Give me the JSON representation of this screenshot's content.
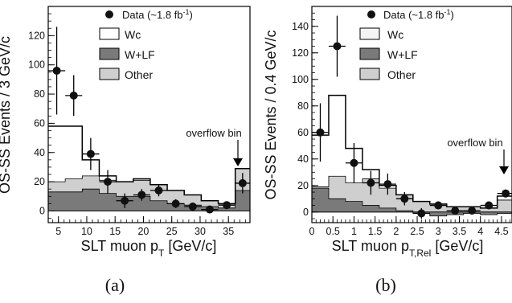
{
  "chart_data": [
    {
      "panel": "(a)",
      "type": "histogram",
      "xlabel": "SLT muon p",
      "xlabel_sub": "T",
      "xlabel_unit": " [GeV/c]",
      "ylabel": "OS-SS Events / 3 GeV/c",
      "xlim": [
        3.2,
        38.8
      ],
      "ylim": [
        -8,
        140
      ],
      "xticks": [
        5,
        10,
        15,
        20,
        25,
        30,
        35
      ],
      "yticks": [
        0,
        20,
        40,
        60,
        80,
        100,
        120
      ],
      "bin_edges": [
        3.2,
        6.2,
        9.2,
        12.2,
        15.2,
        18.2,
        21.2,
        24.2,
        27.2,
        30.2,
        33.2,
        36.2,
        38.8
      ],
      "stack_other": [
        20,
        22,
        24,
        21,
        20,
        21,
        18,
        14,
        11,
        7,
        5,
        29
      ],
      "stack_wlf": [
        13,
        13,
        15,
        12,
        10,
        10,
        7,
        5,
        4,
        3,
        2,
        14
      ],
      "stack_wc": [
        58,
        58,
        35,
        24,
        20,
        22,
        18,
        14,
        11,
        7,
        5,
        29
      ],
      "data_x": [
        4.7,
        7.7,
        10.7,
        13.7,
        16.7,
        19.7,
        22.7,
        25.7,
        28.7,
        31.7,
        34.7,
        37.5
      ],
      "data_y": [
        96,
        79,
        39,
        20,
        7,
        11,
        14,
        5,
        3,
        1,
        4,
        19
      ],
      "data_err": [
        30,
        14,
        11,
        8,
        5,
        4,
        4,
        3,
        2,
        1,
        2,
        7
      ],
      "legend": {
        "data": "Data (~1.8 fb",
        "data_sup": "-1",
        "data_close": ")",
        "wc": "Wc",
        "wlf": "W+LF",
        "other": "Other"
      },
      "annotation": "overflow bin",
      "caption": "(a)"
    },
    {
      "panel": "(b)",
      "type": "histogram",
      "xlabel": "SLT muon p",
      "xlabel_sub": "T,Rel",
      "xlabel_unit": " [GeV/c]",
      "ylabel": "OS-SS Events / 0.4 GeV/c",
      "xlim": [
        0,
        4.75
      ],
      "ylim": [
        -8,
        155
      ],
      "xticks": [
        0,
        0.5,
        1,
        1.5,
        2,
        2.5,
        3,
        3.5,
        4,
        4.5
      ],
      "yticks": [
        0,
        20,
        40,
        60,
        80,
        100,
        120,
        140
      ],
      "bin_edges": [
        0,
        0.4,
        0.8,
        1.2,
        1.6,
        2.0,
        2.4,
        2.8,
        3.2,
        3.6,
        4.0,
        4.4,
        4.75
      ],
      "stack_other": [
        19,
        27,
        22,
        25,
        18,
        13,
        8,
        6,
        4,
        4,
        3,
        9
      ],
      "stack_wlf": [
        18,
        10,
        8,
        5,
        3,
        1,
        -1,
        -3,
        -2,
        -1,
        -2,
        -1
      ],
      "stack_wc": [
        58,
        88,
        48,
        32,
        20,
        13,
        8,
        6,
        4,
        4,
        3,
        12
      ],
      "data_x": [
        0.2,
        0.6,
        1.0,
        1.4,
        1.8,
        2.2,
        2.6,
        3.0,
        3.4,
        3.8,
        4.2,
        4.6
      ],
      "data_y": [
        60,
        125,
        37,
        22,
        21,
        10,
        -1,
        5,
        1,
        1,
        5,
        14
      ],
      "data_err": [
        22,
        23,
        15,
        9,
        8,
        5,
        4,
        3,
        2,
        2,
        2,
        3
      ],
      "legend": {
        "data": "Data (~1.8 fb",
        "data_sup": "-1",
        "data_close": ")",
        "wc": "Wc",
        "wlf": "W+LF",
        "other": "Other"
      },
      "annotation": "overflow bin",
      "caption": "(b)"
    }
  ],
  "colors": {
    "other_fill": "#cfcfcf",
    "wlf_fill": "#7a7a7a",
    "wc_line": "#000000",
    "data_marker": "#111111"
  }
}
